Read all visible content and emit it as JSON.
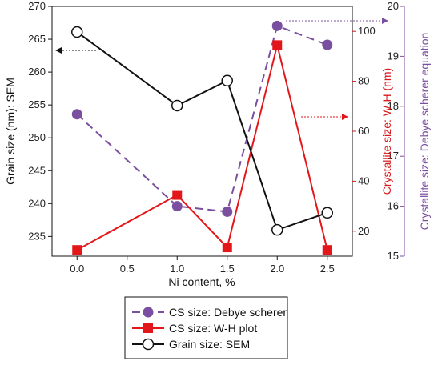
{
  "chart_data": {
    "type": "line",
    "xlabel": "Ni content, %",
    "x_ticks": [
      "0.0",
      "0.5",
      "1.0",
      "1.5",
      "2.0",
      "2.5"
    ],
    "xlim": [
      -0.25,
      2.75
    ],
    "axes": {
      "left": {
        "label": "Grain size (nm): SEM",
        "ylim": [
          232,
          270
        ],
        "ticks": [
          235,
          240,
          245,
          250,
          255,
          260,
          265,
          270
        ],
        "color": "#111111"
      },
      "right1": {
        "label": "Crystallite size: W-H (nm)",
        "ylim": [
          10,
          110
        ],
        "ticks": [
          20,
          40,
          60,
          80,
          100
        ],
        "color": "#d7191c"
      },
      "right2": {
        "label": "Crystallite size: Debye scherer equation",
        "ylim": [
          15,
          20
        ],
        "ticks": [
          15,
          16,
          17,
          18,
          19,
          20
        ],
        "color": "#7b4fa0"
      }
    },
    "series": [
      {
        "name": "CS size: Debye scherer",
        "axis": "right2",
        "marker": "circle-filled",
        "line": "dashed",
        "color": "#7b4fa0",
        "x": [
          0.0,
          1.0,
          1.5,
          2.0,
          2.5
        ],
        "y": [
          17.84,
          16.0,
          15.89,
          19.61,
          19.23
        ]
      },
      {
        "name": "CS size: W-H plot",
        "axis": "right1",
        "marker": "square-filled",
        "line": "solid",
        "color": "#e3161a",
        "x": [
          0.0,
          1.0,
          1.5,
          2.0,
          2.5
        ],
        "y": [
          12.5,
          34.5,
          13.5,
          94.5,
          12.5
        ]
      },
      {
        "name": "Grain size: SEM",
        "axis": "left",
        "marker": "circle-open",
        "line": "solid",
        "color": "#111111",
        "x": [
          0.0,
          1.0,
          1.5,
          2.0,
          2.5
        ],
        "y": [
          266.1,
          254.9,
          258.7,
          236.0,
          238.6
        ]
      }
    ],
    "grid": false,
    "legend": {
      "position": "bottom-center",
      "entries": [
        "CS size: Debye scherer",
        "CS size: W-H plot",
        "Grain size: SEM"
      ]
    }
  }
}
